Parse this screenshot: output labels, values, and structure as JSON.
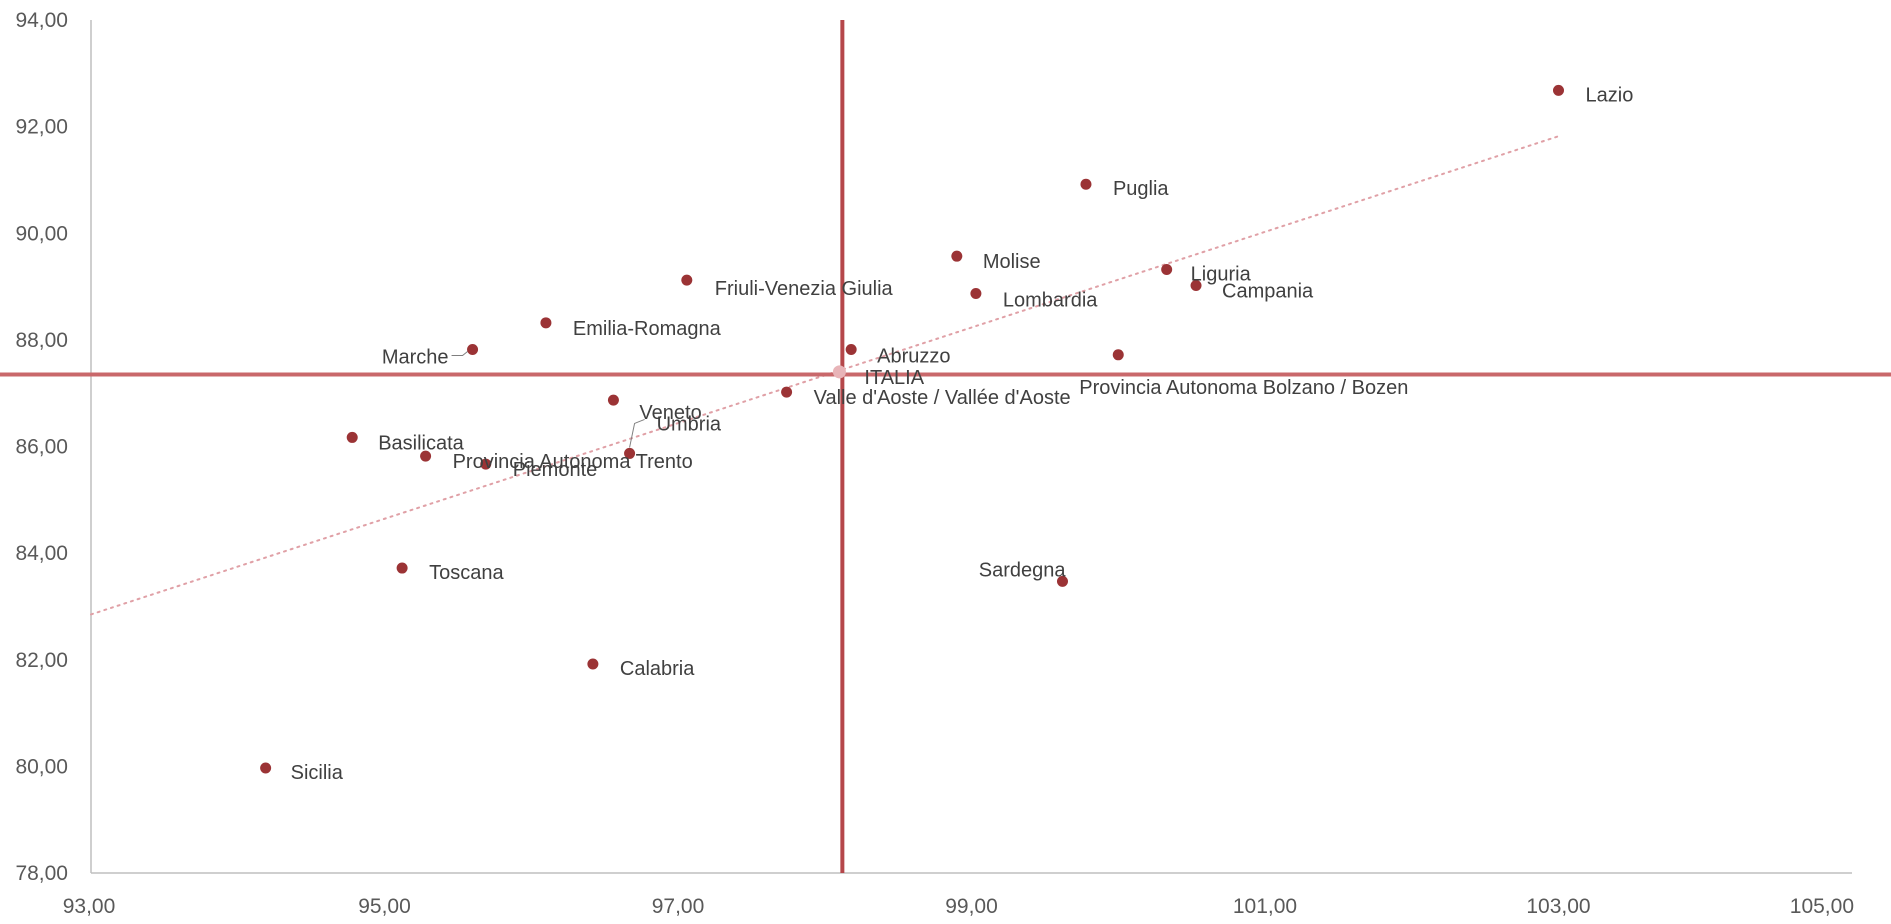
{
  "chart_data": {
    "type": "scatter",
    "title": "",
    "xlabel": "",
    "ylabel": "",
    "xlim": [
      93,
      105
    ],
    "ylim": [
      78,
      94
    ],
    "x_ticks": [
      "93,00",
      "95,00",
      "97,00",
      "99,00",
      "101,00",
      "103,00",
      "105,00"
    ],
    "y_ticks": [
      "94,00",
      "92,00",
      "90,00",
      "88,00",
      "86,00",
      "84,00",
      "82,00",
      "80,00",
      "78,00"
    ],
    "grid": false,
    "reference_lines": {
      "x": 98.12,
      "y": 87.35
    },
    "trendline": {
      "type": "linear",
      "x": [
        93.0,
        103.0
      ],
      "y": [
        82.85,
        91.82
      ]
    },
    "points": [
      {
        "label": "Lazio",
        "x": 103.0,
        "y": 92.68
      },
      {
        "label": "Puglia",
        "x": 99.78,
        "y": 90.92
      },
      {
        "label": "Molise",
        "x": 98.9,
        "y": 89.57
      },
      {
        "label": "Liguria",
        "x": 100.33,
        "y": 89.32
      },
      {
        "label": "Campania",
        "x": 100.53,
        "y": 89.02
      },
      {
        "label": "Lombardia",
        "x": 99.03,
        "y": 88.87
      },
      {
        "label": "Friuli-Venezia Giulia",
        "x": 97.06,
        "y": 89.12
      },
      {
        "label": "Emilia-Romagna",
        "x": 96.1,
        "y": 88.32
      },
      {
        "label": "Marche",
        "x": 95.6,
        "y": 87.82
      },
      {
        "label": "Abruzzo",
        "x": 98.18,
        "y": 87.82
      },
      {
        "label": "Provincia Autonoma Bolzano / Bozen",
        "x": 100.0,
        "y": 87.72
      },
      {
        "label": "ITALIA",
        "x": 98.1,
        "y": 87.4,
        "highlight": true
      },
      {
        "label": "Valle d'Aoste / Vallée d'Aoste",
        "x": 97.74,
        "y": 87.02
      },
      {
        "label": "Veneto",
        "x": 96.56,
        "y": 86.87
      },
      {
        "label": "Basilicata",
        "x": 94.78,
        "y": 86.17
      },
      {
        "label": "Umbria",
        "x": 96.67,
        "y": 85.87
      },
      {
        "label": "Provincia Autonoma Trento",
        "x": 95.28,
        "y": 85.82
      },
      {
        "label": "Piemonte",
        "x": 95.69,
        "y": 85.67
      },
      {
        "label": "Toscana",
        "x": 95.12,
        "y": 83.72
      },
      {
        "label": "Sardegna",
        "x": 99.62,
        "y": 83.47
      },
      {
        "label": "Calabria",
        "x": 96.42,
        "y": 81.92
      },
      {
        "label": "Sicilia",
        "x": 94.19,
        "y": 79.97
      }
    ]
  },
  "colors": {
    "point": "#9b3335",
    "highlight_point": "#e8b4b8",
    "ref_vertical": "#b5474a",
    "ref_horizontal": "#c9686b",
    "trendline": "#e0a0a6",
    "axis": "#bfbfbf"
  }
}
